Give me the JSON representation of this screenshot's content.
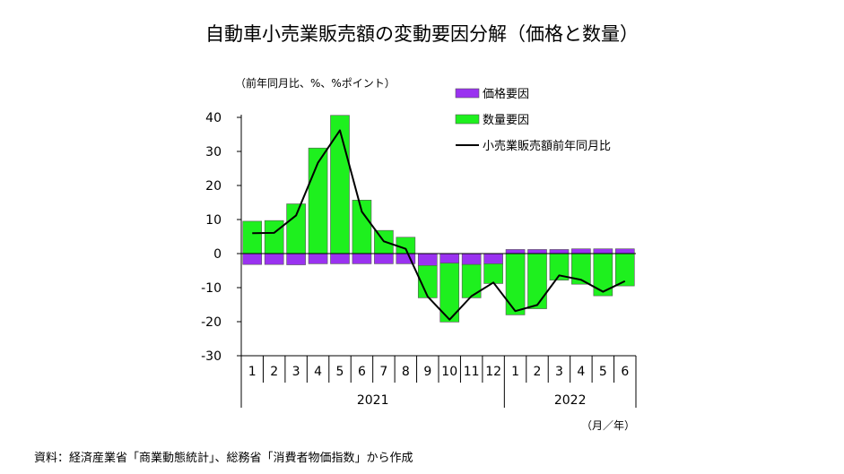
{
  "title": "自動車小売業販売額の変動要因分解（価格と数量）",
  "unit_label": "（前年同月比、%、%ポイント）",
  "x_unit_label": "（月／年）",
  "source": "資料：経済産業省「商業動態統計」、総務省「消費者物価指数」から作成",
  "colors": {
    "price": "#9a32f0",
    "quantity": "#1ef01e",
    "line": "#000000"
  },
  "chart_data": {
    "type": "bar",
    "stacked": true,
    "categories": [
      "1",
      "2",
      "3",
      "4",
      "5",
      "6",
      "7",
      "8",
      "9",
      "10",
      "11",
      "12",
      "1",
      "2",
      "3",
      "4",
      "5",
      "6"
    ],
    "years": [
      {
        "label": "2021",
        "start": 0,
        "end": 11
      },
      {
        "label": "2022",
        "start": 12,
        "end": 17
      }
    ],
    "ylim": [
      -30,
      40
    ],
    "yticks": [
      40,
      30,
      20,
      10,
      0,
      -10,
      -20,
      -30
    ],
    "grid": false,
    "legend_position": "top-right",
    "series": [
      {
        "name": "価格要因",
        "kind": "bar",
        "values": [
          -3.2,
          -3.2,
          -3.3,
          -3.0,
          -3.0,
          -3.0,
          -3.0,
          -3.0,
          -3.5,
          -2.8,
          -3.2,
          -3.0,
          1.2,
          1.2,
          1.2,
          1.4,
          1.4,
          1.4
        ]
      },
      {
        "name": "数量要因",
        "kind": "bar",
        "values": [
          9.5,
          9.7,
          14.6,
          31.0,
          40.6,
          15.7,
          6.8,
          4.8,
          -9.5,
          -17.3,
          -9.8,
          -5.8,
          -18.0,
          -16.2,
          -7.8,
          -9.0,
          -12.4,
          -9.5
        ]
      },
      {
        "name": "小売業販売額前年同月比",
        "kind": "line",
        "values": [
          6.0,
          6.1,
          11.2,
          26.7,
          36.2,
          12.3,
          3.6,
          1.4,
          -12.6,
          -19.4,
          -12.5,
          -8.5,
          -16.9,
          -15.1,
          -6.4,
          -7.7,
          -11.2,
          -8.1
        ]
      }
    ]
  }
}
